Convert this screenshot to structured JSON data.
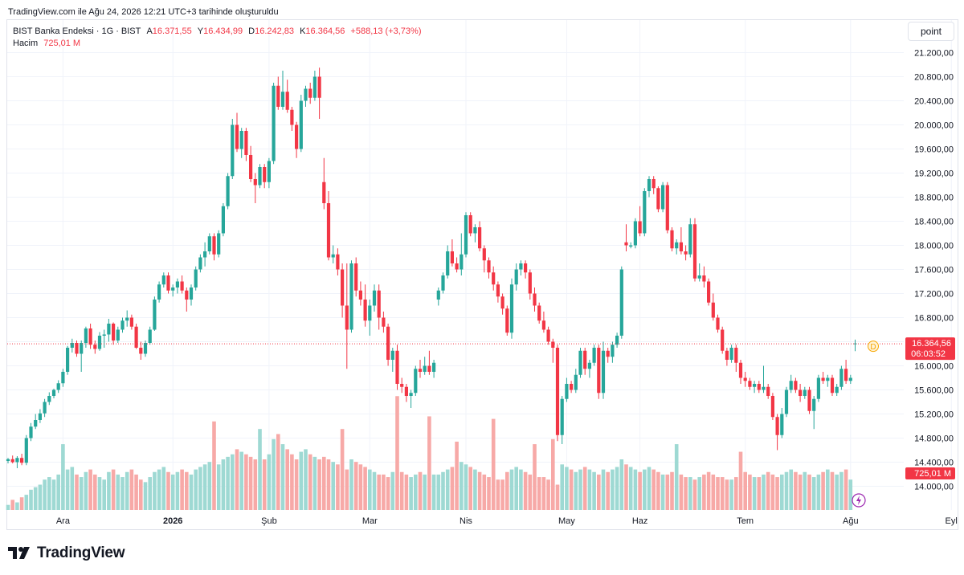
{
  "snapshot_caption": "TradingView.com ile Ağu 24, 2026 12:21 UTC+3 tarihinde oluşturuldu",
  "legend": {
    "symbol": "BIST Banka Endeksi · 1G · BIST",
    "open_label": "A",
    "open_value": "16.371,55",
    "high_label": "Y",
    "high_value": "16.434,99",
    "low_label": "D",
    "low_value": "16.242,83",
    "close_label": "K",
    "close_value": "16.364,56",
    "change": "+588,13 (+3,73%)",
    "volume_label": "Hacim",
    "volume_value": "725,01 M"
  },
  "unit_button": "point",
  "brand": "TradingView",
  "colors": {
    "up": "#26a69a",
    "down": "#f23645",
    "vol_up": "#9ed9d3",
    "vol_down": "#f7a9a7",
    "grid": "#f0f3fa",
    "text": "#131722",
    "dividend_marker": "#f7a600"
  },
  "chart_data": {
    "type": "candlestick",
    "y_axis": {
      "min": 14000,
      "max": 21200,
      "step": 400,
      "tick_labels": [
        "14.000,00",
        "14.400,00",
        "14.800,00",
        "15.200,00",
        "15.600,00",
        "16.000,00",
        "16.400,00",
        "16.800,00",
        "17.200,00",
        "17.600,00",
        "18.000,00",
        "18.400,00",
        "18.800,00",
        "19.200,00",
        "19.600,00",
        "20.000,00",
        "20.400,00",
        "20.800,00",
        "21.200,00"
      ]
    },
    "x_axis": {
      "tick_labels": [
        "Ara",
        "2026",
        "Şub",
        "Mar",
        "Nis",
        "May",
        "Haz",
        "Tem",
        "Ağu",
        "Eyl"
      ]
    },
    "last_price_label": "16.364,56",
    "countdown_label": "06:03:52",
    "volume_label": "725,01 M",
    "event_marker": "D",
    "candles": [
      [
        14420,
        14470,
        14380,
        14450,
        1
      ],
      [
        14450,
        14510,
        14380,
        14400,
        0
      ],
      [
        14400,
        14500,
        14300,
        14470,
        1
      ],
      [
        14470,
        14540,
        14350,
        14390,
        0
      ],
      [
        14390,
        14850,
        14350,
        14800,
        1
      ],
      [
        14800,
        15050,
        14750,
        14990,
        1
      ],
      [
        14990,
        15200,
        14950,
        15100,
        1
      ],
      [
        15100,
        15280,
        15050,
        15210,
        1
      ],
      [
        15210,
        15450,
        15150,
        15400,
        1
      ],
      [
        15400,
        15560,
        15350,
        15500,
        1
      ],
      [
        15500,
        15620,
        15460,
        15600,
        1
      ],
      [
        15600,
        15760,
        15550,
        15710,
        1
      ],
      [
        15710,
        15950,
        15650,
        15900,
        1
      ],
      [
        15900,
        16330,
        15850,
        16300,
        1
      ],
      [
        16300,
        16450,
        16220,
        16380,
        1
      ],
      [
        16380,
        16420,
        16150,
        16200,
        0
      ],
      [
        16200,
        16420,
        15900,
        16380,
        1
      ],
      [
        16380,
        16650,
        16300,
        16620,
        1
      ],
      [
        16620,
        16700,
        16280,
        16350,
        0
      ],
      [
        16350,
        16420,
        16200,
        16280,
        0
      ],
      [
        16280,
        16560,
        16250,
        16500,
        1
      ],
      [
        16500,
        16600,
        16300,
        16520,
        1
      ],
      [
        16520,
        16780,
        16400,
        16700,
        1
      ],
      [
        16700,
        16720,
        16350,
        16420,
        0
      ],
      [
        16420,
        16650,
        16380,
        16600,
        1
      ],
      [
        16600,
        16800,
        16550,
        16750,
        1
      ],
      [
        16750,
        16920,
        16650,
        16800,
        1
      ],
      [
        16800,
        16850,
        16600,
        16650,
        0
      ],
      [
        16650,
        16700,
        16280,
        16300,
        0
      ],
      [
        16300,
        16400,
        16100,
        16200,
        0
      ],
      [
        16200,
        16420,
        16150,
        16380,
        1
      ],
      [
        16380,
        16650,
        16350,
        16600,
        1
      ],
      [
        16600,
        17150,
        16580,
        17100,
        1
      ],
      [
        17100,
        17400,
        17050,
        17350,
        1
      ],
      [
        17350,
        17550,
        17300,
        17500,
        1
      ],
      [
        17500,
        17550,
        17200,
        17250,
        0
      ],
      [
        17250,
        17350,
        17150,
        17300,
        1
      ],
      [
        17300,
        17450,
        17200,
        17400,
        1
      ],
      [
        17400,
        17500,
        17200,
        17250,
        0
      ],
      [
        17250,
        17300,
        16900,
        17100,
        0
      ],
      [
        17100,
        17350,
        17000,
        17300,
        1
      ],
      [
        17300,
        17650,
        17250,
        17600,
        1
      ],
      [
        17600,
        17850,
        17550,
        17800,
        1
      ],
      [
        17800,
        18050,
        17650,
        17900,
        1
      ],
      [
        17900,
        18200,
        17850,
        18150,
        1
      ],
      [
        18150,
        18200,
        17750,
        17850,
        0
      ],
      [
        17850,
        18250,
        17800,
        18200,
        1
      ],
      [
        18200,
        18700,
        18150,
        18650,
        1
      ],
      [
        18650,
        19200,
        18600,
        19150,
        1
      ],
      [
        19150,
        20100,
        19100,
        20000,
        1
      ],
      [
        20000,
        20200,
        19550,
        19600,
        0
      ],
      [
        19600,
        19950,
        19450,
        19900,
        1
      ],
      [
        19900,
        19950,
        19400,
        19500,
        0
      ],
      [
        19500,
        19650,
        19050,
        19100,
        0
      ],
      [
        19100,
        19200,
        18700,
        19000,
        0
      ],
      [
        19000,
        19350,
        18950,
        19300,
        1
      ],
      [
        19300,
        19350,
        18950,
        19050,
        0
      ],
      [
        19050,
        19450,
        18950,
        19400,
        1
      ],
      [
        19400,
        20700,
        19350,
        20650,
        1
      ],
      [
        20650,
        20800,
        20250,
        20300,
        0
      ],
      [
        20300,
        20900,
        20250,
        20550,
        1
      ],
      [
        20550,
        20750,
        20200,
        20250,
        0
      ],
      [
        20250,
        20300,
        19900,
        20000,
        0
      ],
      [
        20000,
        20050,
        19450,
        19600,
        0
      ],
      [
        19600,
        20500,
        19550,
        20400,
        1
      ],
      [
        20400,
        20650,
        20300,
        20600,
        1
      ],
      [
        20600,
        20700,
        20350,
        20450,
        0
      ],
      [
        20450,
        20900,
        20400,
        20800,
        1
      ],
      [
        20800,
        20950,
        20100,
        20450,
        0
      ],
      [
        19050,
        19450,
        18600,
        18700,
        0
      ],
      [
        18700,
        18900,
        17750,
        17800,
        0
      ],
      [
        17800,
        18000,
        17700,
        17850,
        1
      ],
      [
        17850,
        17950,
        17500,
        17600,
        0
      ],
      [
        17600,
        17700,
        16800,
        17000,
        0
      ],
      [
        17000,
        17700,
        15950,
        16600,
        0
      ],
      [
        16600,
        17750,
        16550,
        17700,
        1
      ],
      [
        17700,
        17800,
        17150,
        17250,
        0
      ],
      [
        17250,
        17400,
        17000,
        17100,
        0
      ],
      [
        17100,
        17350,
        16650,
        16750,
        0
      ],
      [
        16750,
        17100,
        16500,
        17000,
        1
      ],
      [
        17000,
        17350,
        16900,
        17250,
        1
      ],
      [
        17250,
        17350,
        16600,
        16800,
        0
      ],
      [
        16800,
        16900,
        16550,
        16650,
        0
      ],
      [
        16650,
        16700,
        16000,
        16100,
        0
      ],
      [
        16100,
        16300,
        15900,
        16250,
        1
      ],
      [
        16250,
        16350,
        15600,
        15700,
        0
      ],
      [
        15700,
        15800,
        15550,
        15650,
        0
      ],
      [
        15650,
        15700,
        15400,
        15500,
        0
      ],
      [
        15500,
        15600,
        15300,
        15550,
        1
      ],
      [
        15550,
        16000,
        15500,
        15950,
        1
      ],
      [
        15950,
        16100,
        15800,
        15900,
        0
      ],
      [
        15900,
        16150,
        15850,
        16000,
        1
      ],
      [
        16000,
        16250,
        15850,
        15900,
        0
      ],
      [
        15900,
        16100,
        15800,
        16050,
        1
      ],
      [
        17100,
        17300,
        17000,
        17250,
        1
      ],
      [
        17250,
        17550,
        17200,
        17500,
        1
      ],
      [
        17500,
        18000,
        17450,
        17900,
        1
      ],
      [
        17900,
        18100,
        17650,
        17700,
        0
      ],
      [
        17700,
        17800,
        17550,
        17600,
        0
      ],
      [
        17600,
        18200,
        17500,
        17850,
        1
      ],
      [
        17850,
        18550,
        17800,
        18500,
        1
      ],
      [
        18500,
        18550,
        18150,
        18200,
        0
      ],
      [
        18200,
        18350,
        18050,
        18300,
        1
      ],
      [
        18300,
        18400,
        17900,
        17950,
        0
      ],
      [
        17950,
        18000,
        17550,
        17750,
        0
      ],
      [
        17750,
        17800,
        17450,
        17550,
        0
      ],
      [
        17550,
        17650,
        17250,
        17350,
        0
      ],
      [
        17350,
        17400,
        17050,
        17150,
        0
      ],
      [
        17150,
        17200,
        16850,
        16950,
        0
      ],
      [
        16950,
        17000,
        16500,
        16550,
        0
      ],
      [
        16550,
        17450,
        16450,
        17350,
        1
      ],
      [
        17350,
        17700,
        17250,
        17600,
        1
      ],
      [
        17600,
        17750,
        17500,
        17700,
        1
      ],
      [
        17700,
        17750,
        17450,
        17550,
        0
      ],
      [
        17550,
        17600,
        17100,
        17200,
        0
      ],
      [
        17200,
        17300,
        16900,
        17000,
        0
      ],
      [
        17000,
        17050,
        16700,
        16750,
        0
      ],
      [
        16750,
        16900,
        16550,
        16600,
        0
      ],
      [
        16600,
        16650,
        16350,
        16400,
        0
      ],
      [
        16400,
        16450,
        16050,
        16300,
        0
      ],
      [
        16300,
        16350,
        14750,
        14850,
        0
      ],
      [
        14850,
        15500,
        14700,
        15450,
        1
      ],
      [
        15450,
        15800,
        15400,
        15700,
        1
      ],
      [
        15700,
        15750,
        15550,
        15600,
        0
      ],
      [
        15600,
        15950,
        15550,
        15850,
        1
      ],
      [
        15850,
        16300,
        15800,
        16250,
        1
      ],
      [
        16250,
        16300,
        15850,
        15950,
        0
      ],
      [
        15950,
        16100,
        15800,
        16050,
        1
      ],
      [
        16050,
        16350,
        16000,
        16300,
        1
      ],
      [
        16300,
        16350,
        15450,
        15550,
        0
      ],
      [
        15550,
        16400,
        15450,
        16250,
        1
      ],
      [
        16250,
        16300,
        16050,
        16150,
        0
      ],
      [
        16150,
        16400,
        16050,
        16350,
        1
      ],
      [
        16350,
        16550,
        16300,
        16500,
        1
      ],
      [
        16500,
        17650,
        16450,
        17600,
        1
      ],
      [
        18050,
        18350,
        17900,
        18000,
        0
      ],
      [
        18000,
        18050,
        17950,
        17980,
        1
      ],
      [
        18000,
        18450,
        17950,
        18400,
        1
      ],
      [
        18400,
        18650,
        18150,
        18200,
        0
      ],
      [
        18200,
        18950,
        18150,
        18900,
        1
      ],
      [
        18900,
        19150,
        18800,
        19100,
        1
      ],
      [
        19100,
        19150,
        18850,
        18950,
        0
      ],
      [
        18950,
        18980,
        18550,
        18600,
        0
      ],
      [
        18600,
        19050,
        18550,
        19000,
        1
      ],
      [
        19000,
        19050,
        18200,
        18250,
        0
      ],
      [
        18250,
        18300,
        17900,
        17950,
        0
      ],
      [
        17950,
        18100,
        17850,
        18050,
        1
      ],
      [
        18050,
        18300,
        17850,
        17900,
        0
      ],
      [
        17900,
        18000,
        17750,
        17850,
        0
      ],
      [
        17850,
        18450,
        17800,
        18350,
        1
      ],
      [
        18350,
        18450,
        17400,
        17450,
        0
      ],
      [
        17450,
        17700,
        17400,
        17500,
        1
      ],
      [
        17500,
        17650,
        17300,
        17400,
        0
      ],
      [
        17400,
        17450,
        17000,
        17050,
        0
      ],
      [
        17050,
        17200,
        16750,
        16800,
        0
      ],
      [
        16800,
        16850,
        16550,
        16600,
        0
      ],
      [
        16600,
        16650,
        16200,
        16250,
        0
      ],
      [
        16250,
        16300,
        16000,
        16100,
        0
      ],
      [
        16100,
        16350,
        16050,
        16300,
        1
      ],
      [
        16300,
        16350,
        15900,
        16050,
        0
      ],
      [
        16050,
        16100,
        15700,
        15800,
        0
      ],
      [
        15800,
        15900,
        15650,
        15750,
        0
      ],
      [
        15750,
        15800,
        15600,
        15650,
        0
      ],
      [
        15650,
        15750,
        15550,
        15700,
        1
      ],
      [
        15700,
        15750,
        15550,
        15600,
        0
      ],
      [
        15600,
        16000,
        15550,
        15650,
        1
      ],
      [
        15650,
        15700,
        15450,
        15500,
        0
      ],
      [
        15500,
        15550,
        15100,
        15150,
        0
      ],
      [
        15150,
        15200,
        14600,
        14850,
        0
      ],
      [
        14850,
        15300,
        14800,
        15200,
        1
      ],
      [
        15200,
        15650,
        15150,
        15600,
        1
      ],
      [
        15600,
        15850,
        15550,
        15750,
        1
      ],
      [
        15750,
        15800,
        15550,
        15600,
        0
      ],
      [
        15600,
        15700,
        15400,
        15500,
        0
      ],
      [
        15500,
        15650,
        15450,
        15600,
        1
      ],
      [
        15600,
        15650,
        15200,
        15250,
        0
      ],
      [
        15250,
        15500,
        14950,
        15450,
        1
      ],
      [
        15450,
        15850,
        15400,
        15800,
        1
      ],
      [
        15800,
        15900,
        15700,
        15750,
        0
      ],
      [
        15750,
        15850,
        15650,
        15800,
        1
      ],
      [
        15800,
        15850,
        15500,
        15550,
        0
      ],
      [
        15550,
        15700,
        15500,
        15650,
        1
      ],
      [
        15650,
        16000,
        15600,
        15950,
        1
      ],
      [
        15950,
        16100,
        15700,
        15750,
        0
      ],
      [
        15750,
        15850,
        15700,
        15800,
        1
      ],
      [
        16371.55,
        16434.99,
        16242.83,
        16364.56,
        1
      ]
    ],
    "volumes": [
      2,
      4,
      3,
      5,
      6,
      8,
      9,
      10,
      12,
      13,
      12,
      14,
      15,
      16,
      17,
      14,
      13,
      15,
      16,
      14,
      13,
      12,
      15,
      16,
      14,
      13,
      15,
      16,
      14,
      12,
      11,
      13,
      15,
      16,
      17,
      15,
      14,
      15,
      16,
      15,
      14,
      16,
      17,
      18,
      19,
      20,
      18,
      20,
      21,
      22,
      24,
      23,
      22,
      21,
      20,
      19,
      20,
      22,
      28,
      30,
      26,
      24,
      22,
      20,
      23,
      24,
      22,
      21,
      20,
      21,
      20,
      19,
      18,
      17,
      16,
      20,
      19,
      18,
      17,
      16,
      15,
      14,
      14,
      13,
      15,
      16,
      15,
      14,
      13,
      14,
      15,
      14,
      13,
      14,
      14,
      15,
      16,
      17,
      18,
      19,
      18,
      17,
      16,
      15,
      14,
      13,
      13,
      12,
      12,
      15,
      16,
      17,
      16,
      15,
      14,
      14,
      13,
      13,
      12,
      12,
      10,
      18,
      17,
      16,
      15,
      16,
      17,
      16,
      15,
      14,
      16,
      15,
      16,
      17,
      20,
      18,
      17,
      16,
      15,
      16,
      17,
      16,
      15,
      14,
      14,
      15,
      16,
      14,
      13,
      13,
      12,
      13,
      14,
      15,
      14,
      13,
      13,
      12,
      12,
      13,
      14,
      15,
      14,
      13,
      13,
      14,
      15,
      14,
      13,
      14,
      15,
      16,
      15,
      14,
      15,
      14,
      13,
      14,
      15,
      16,
      15,
      14,
      15,
      16,
      12
    ],
    "volume_highlights": {
      "12": 26,
      "45": 35,
      "55": 32,
      "73": 32,
      "85": 45,
      "92": 37,
      "98": 27,
      "106": 36,
      "115": 26,
      "119": 28,
      "146": 26,
      "160": 23,
      "186": 13
    }
  }
}
